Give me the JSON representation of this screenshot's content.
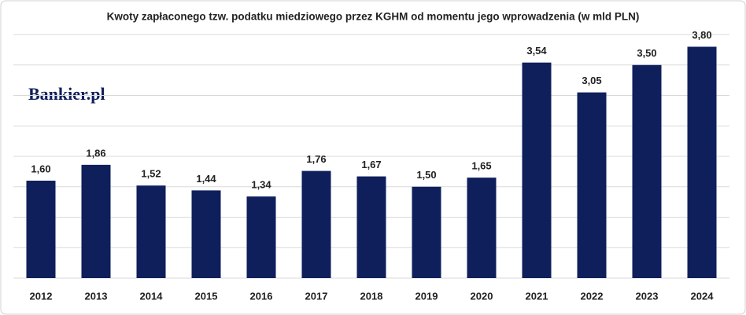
{
  "chart_data": {
    "type": "bar",
    "title": "Kwoty zapłaconego tzw. podatku miedziowego przez KGHM od momentu jego wprowadzenia (w mld PLN)",
    "logo": "Bankier.pl",
    "categories": [
      "2012",
      "2013",
      "2014",
      "2015",
      "2016",
      "2017",
      "2018",
      "2019",
      "2020",
      "2021",
      "2022",
      "2023",
      "2024"
    ],
    "values": [
      1.6,
      1.86,
      1.52,
      1.44,
      1.34,
      1.76,
      1.67,
      1.5,
      1.65,
      3.54,
      3.05,
      3.5,
      3.8
    ],
    "value_labels": [
      "1,60",
      "1,86",
      "1,52",
      "1,44",
      "1,34",
      "1,76",
      "1,67",
      "1,50",
      "1,65",
      "3,54",
      "3,05",
      "3,50",
      "3,80"
    ],
    "color": "#0e1f5b",
    "ylim": [
      0,
      4
    ],
    "yticks": [
      0,
      0.5,
      1,
      1.5,
      2,
      2.5,
      3,
      3.5,
      4
    ],
    "grid": true
  }
}
